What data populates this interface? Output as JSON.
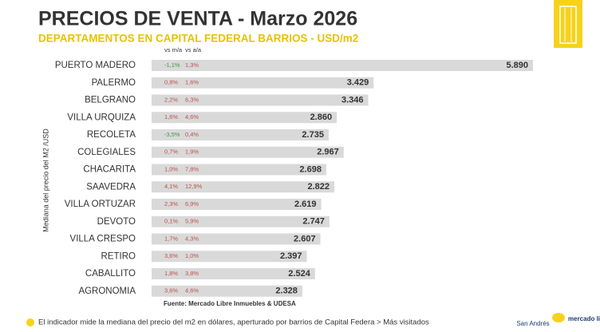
{
  "chart_data": {
    "type": "hbar",
    "title": "PRECIOS DE VENTA - Marzo 2026",
    "subtitle": "DEPARTAMENTOS EN CAPITAL FEDERAL BARRIOS - USD/m2",
    "y_label": "Mediana del precio del M2 /USD",
    "categories": [
      "PUERTO MADERO",
      "PALERMO",
      "BELGRANO",
      "VILLA URQUIZA",
      "RECOLETA",
      "COLEGIALES",
      "CHACARITA",
      "SAAVEDRA",
      "VILLA ORTUZAR",
      "DEVOTO",
      "VILLA CRESPO",
      "RETIRO",
      "CABALLITO",
      "AGRONOMIA"
    ],
    "values": [
      5890,
      3429,
      3346,
      2860,
      2735,
      2967,
      2698,
      2822,
      2619,
      2747,
      2607,
      2397,
      2524,
      2328
    ],
    "value_labels": [
      "5.890",
      "3.429",
      "3.346",
      "2.860",
      "2.735",
      "2.967",
      "2.698",
      "2.822",
      "2.619",
      "2.747",
      "2.607",
      "2.397",
      "2.524",
      "2.328"
    ],
    "color": "#d9d9d9",
    "change_columns": [
      {
        "name": "vs m/a",
        "values": [
          -1.1,
          0.8,
          2.2,
          1.6,
          -3.5,
          0.7,
          1.0,
          4.1,
          2.3,
          0.1,
          1.7,
          3.6,
          1.8,
          3.6
        ],
        "value_labels": [
          "-1,1%",
          "0,8%",
          "2,2%",
          "1,6%",
          "-3,5%",
          "0,7%",
          "1,0%",
          "4,1%",
          "2,3%",
          "0,1%",
          "1,7%",
          "3,6%",
          "1,8%",
          "3,6%"
        ]
      },
      {
        "name": "vs a/a",
        "values": [
          1.3,
          1.6,
          6.3,
          4.6,
          0.4,
          1.9,
          7.8,
          12.9,
          6.9,
          5.9,
          4.3,
          1.0,
          3.8,
          4.6
        ],
        "value_labels": [
          "1,3%",
          "1,6%",
          "6,3%",
          "4,6%",
          "0,4%",
          "1,9%",
          "7,8%",
          "12,9%",
          "6,9%",
          "5,9%",
          "4,3%",
          "1,0%",
          "3,8%",
          "4,6%"
        ]
      }
    ],
    "source": "Fuente: Mercado Libre Inmuebles & UDESA",
    "note": "El indicador mide la mediana del precio del m2 en dólares, aperturado por barrios de Capital Federa > Más visitados",
    "logos": [
      "San Andrés",
      "mercado libre"
    ]
  }
}
